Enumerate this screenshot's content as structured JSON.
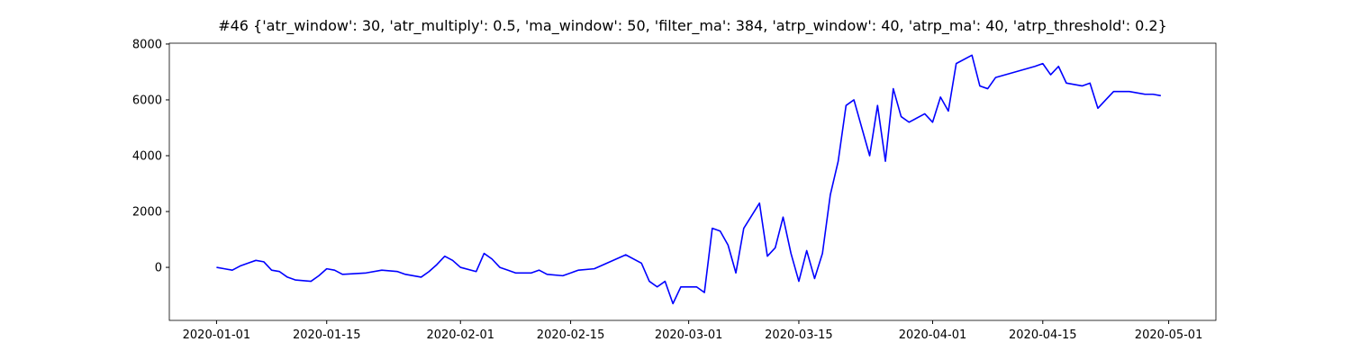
{
  "chart_data": {
    "type": "line",
    "title": "#46 {'atr_window': 30, 'atr_multiply': 0.5, 'ma_window': 50, 'filter_ma': 384, 'atrp_window': 40, 'atrp_ma': 40, 'atrp_threshold': 0.2}",
    "color": "#0000ff",
    "x": [
      "2020-01-01",
      "2020-01-02",
      "2020-01-03",
      "2020-01-04",
      "2020-01-05",
      "2020-01-06",
      "2020-01-07",
      "2020-01-08",
      "2020-01-09",
      "2020-01-10",
      "2020-01-11",
      "2020-01-13",
      "2020-01-14",
      "2020-01-15",
      "2020-01-16",
      "2020-01-17",
      "2020-01-20",
      "2020-01-22",
      "2020-01-24",
      "2020-01-25",
      "2020-01-27",
      "2020-01-28",
      "2020-01-29",
      "2020-01-30",
      "2020-01-31",
      "2020-02-01",
      "2020-02-03",
      "2020-02-04",
      "2020-02-05",
      "2020-02-06",
      "2020-02-07",
      "2020-02-08",
      "2020-02-10",
      "2020-02-11",
      "2020-02-12",
      "2020-02-14",
      "2020-02-16",
      "2020-02-18",
      "2020-02-20",
      "2020-02-22",
      "2020-02-24",
      "2020-02-25",
      "2020-02-26",
      "2020-02-27",
      "2020-02-28",
      "2020-02-29",
      "2020-03-02",
      "2020-03-03",
      "2020-03-04",
      "2020-03-05",
      "2020-03-06",
      "2020-03-07",
      "2020-03-08",
      "2020-03-10",
      "2020-03-11",
      "2020-03-12",
      "2020-03-13",
      "2020-03-14",
      "2020-03-15",
      "2020-03-16",
      "2020-03-17",
      "2020-03-18",
      "2020-03-19",
      "2020-03-20",
      "2020-03-21",
      "2020-03-22",
      "2020-03-23",
      "2020-03-24",
      "2020-03-25",
      "2020-03-26",
      "2020-03-27",
      "2020-03-28",
      "2020-03-29",
      "2020-03-31",
      "2020-04-01",
      "2020-04-02",
      "2020-04-03",
      "2020-04-04",
      "2020-04-06",
      "2020-04-07",
      "2020-04-08",
      "2020-04-09",
      "2020-04-14",
      "2020-04-15",
      "2020-04-16",
      "2020-04-17",
      "2020-04-18",
      "2020-04-20",
      "2020-04-21",
      "2020-04-22",
      "2020-04-23",
      "2020-04-24",
      "2020-04-26",
      "2020-04-28",
      "2020-04-29",
      "2020-04-30"
    ],
    "values": [
      0,
      -50,
      -100,
      50,
      150,
      250,
      200,
      -100,
      -150,
      -350,
      -450,
      -500,
      -300,
      -50,
      -100,
      -250,
      -200,
      -100,
      -150,
      -250,
      -350,
      -150,
      100,
      400,
      250,
      0,
      -150,
      500,
      300,
      0,
      -100,
      -200,
      -200,
      -100,
      -250,
      -300,
      -100,
      -50,
      200,
      450,
      150,
      -500,
      -700,
      -500,
      -1300,
      -700,
      -700,
      -900,
      1400,
      1300,
      800,
      -200,
      1400,
      2300,
      400,
      700,
      1800,
      500,
      -500,
      600,
      -400,
      500,
      2600,
      3800,
      5800,
      6000,
      5000,
      4000,
      5800,
      3800,
      6400,
      5400,
      5200,
      5500,
      5200,
      6100,
      5600,
      7300,
      7600,
      6500,
      6400,
      6800,
      7200,
      7300,
      6900,
      7200,
      6600,
      6500,
      6600,
      5700,
      6000,
      6300,
      6300,
      6200,
      6200,
      6150
    ],
    "xlim": [
      "2019-12-26",
      "2020-05-07"
    ],
    "xticks": [
      "2020-01-01",
      "2020-01-15",
      "2020-02-01",
      "2020-02-15",
      "2020-03-01",
      "2020-03-15",
      "2020-04-01",
      "2020-04-15",
      "2020-05-01"
    ],
    "ylim": [
      -1900,
      8030
    ],
    "yticks": [
      0,
      2000,
      4000,
      6000,
      8000
    ]
  }
}
